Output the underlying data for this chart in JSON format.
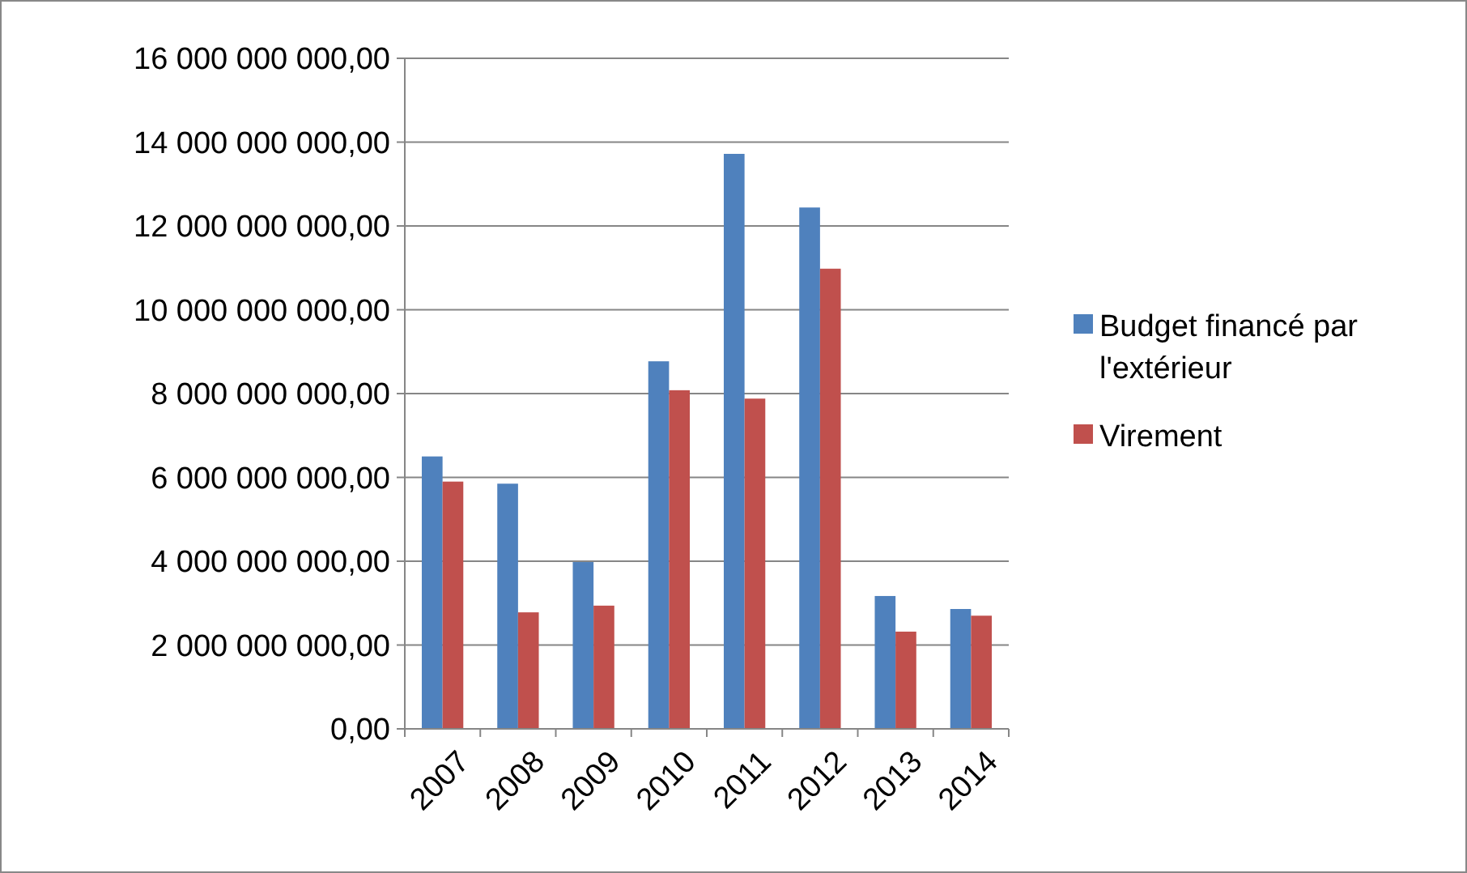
{
  "chart_data": {
    "type": "bar",
    "categories": [
      "2007",
      "2008",
      "2009",
      "2010",
      "2011",
      "2012",
      "2013",
      "2014"
    ],
    "series": [
      {
        "name": "Budget financé par l'extérieur",
        "color": "#4f81bd",
        "values": [
          6500000000.0,
          5850000000.0,
          3980000000.0,
          8770000000.0,
          13720000000.0,
          12440000000.0,
          3170000000.0,
          2860000000.0
        ]
      },
      {
        "name": "Virement",
        "color": "#c0504d",
        "values": [
          5900000000.0,
          2780000000.0,
          2940000000.0,
          8080000000.0,
          7880000000.0,
          10980000000.0,
          2320000000.0,
          2700000000.0
        ]
      }
    ],
    "ylim": [
      0,
      16000000000
    ],
    "yticks": [
      {
        "value": 0,
        "label": "0,00"
      },
      {
        "value": 2000000000,
        "label": "2 000 000 000,00"
      },
      {
        "value": 4000000000,
        "label": "4 000 000 000,00"
      },
      {
        "value": 6000000000,
        "label": "6 000 000 000,00"
      },
      {
        "value": 8000000000,
        "label": "8 000 000 000,00"
      },
      {
        "value": 10000000000,
        "label": "10 000 000 000,00"
      },
      {
        "value": 12000000000,
        "label": "12 000 000 000,00"
      },
      {
        "value": 14000000000,
        "label": "14 000 000 000,00"
      },
      {
        "value": 16000000000,
        "label": "16 000 000 000,00"
      }
    ],
    "grid": "y",
    "legend": "right"
  }
}
